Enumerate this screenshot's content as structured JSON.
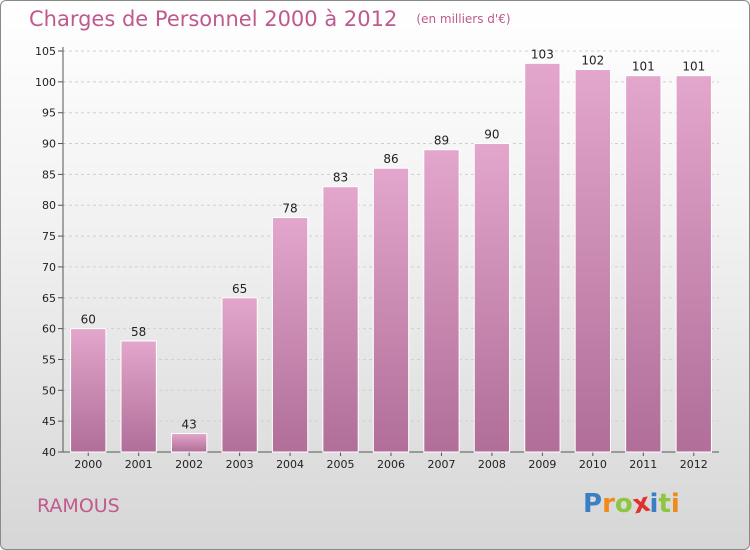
{
  "header": {
    "title": "Charges de Personnel 2000 à 2012",
    "subtitle": "(en milliers d'€)"
  },
  "footer": {
    "city": "RAMOUS",
    "logo": {
      "letters": [
        "P",
        "r",
        "o",
        "x",
        "i",
        "t",
        "i"
      ],
      "colors": [
        "#3a7fc6",
        "#f08a1c",
        "#8dc63f",
        "#e0312f",
        "#3a7fc6",
        "#8dc63f",
        "#f08a1c"
      ]
    }
  },
  "colors": {
    "bar_top": "#e3a6cc",
    "bar_bottom": "#b06e98",
    "bar_stroke": "#ffffff"
  },
  "chart_data": {
    "type": "bar",
    "categories": [
      "2000",
      "2001",
      "2002",
      "2003",
      "2004",
      "2005",
      "2006",
      "2007",
      "2008",
      "2009",
      "2010",
      "2011",
      "2012"
    ],
    "values": [
      60,
      58,
      43,
      65,
      78,
      83,
      86,
      89,
      90,
      103,
      102,
      101,
      101
    ],
    "title": "Charges de Personnel 2000 à 2012",
    "subtitle": "(en milliers d'€)",
    "xlabel": "",
    "ylabel": "",
    "ylim": [
      40,
      105
    ],
    "yticks": [
      40,
      45,
      50,
      55,
      60,
      65,
      70,
      75,
      80,
      85,
      90,
      95,
      100,
      105
    ],
    "grid": true,
    "data_labels": true
  }
}
